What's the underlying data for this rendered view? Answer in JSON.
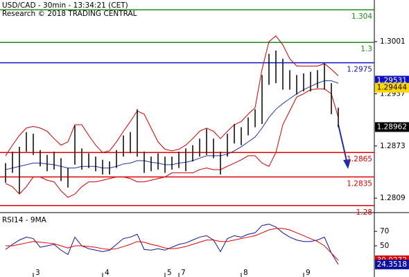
{
  "chart_data": [
    {
      "type": "hilo",
      "title": "USD/CAD - 30min - 13:34:21 (CET)",
      "subtitle": "Research © 2018 TRADING CENTRAL",
      "high": [
        1.2852,
        1.2866,
        1.2872,
        1.289,
        1.2888,
        1.2868,
        1.2862,
        1.2866,
        1.2858,
        1.2846,
        1.2898,
        1.287,
        1.2864,
        1.286,
        1.2856,
        1.2854,
        1.2868,
        1.2886,
        1.289,
        1.2918,
        1.2866,
        1.286,
        1.2864,
        1.286,
        1.286,
        1.2866,
        1.287,
        1.2874,
        1.2882,
        1.2894,
        1.2882,
        1.2866,
        1.2888,
        1.29,
        1.2896,
        1.2908,
        1.2918,
        1.296,
        1.2986,
        1.299,
        1.298,
        1.2966,
        1.296,
        1.2962,
        1.2964,
        1.2966,
        1.2974,
        1.295,
        1.292
      ],
      "low": [
        1.2828,
        1.284,
        1.2815,
        1.2866,
        1.2862,
        1.2848,
        1.2842,
        1.2844,
        1.283,
        1.2822,
        1.285,
        1.2844,
        1.2846,
        1.2842,
        1.2838,
        1.2838,
        1.2846,
        1.286,
        1.2864,
        1.286,
        1.284,
        1.2842,
        1.2844,
        1.284,
        1.2844,
        1.2846,
        1.2842,
        1.2854,
        1.286,
        1.2862,
        1.2858,
        1.2838,
        1.286,
        1.2876,
        1.2874,
        1.2886,
        1.2896,
        1.29,
        1.2948,
        1.295,
        1.2942,
        1.2942,
        1.2936,
        1.294,
        1.294,
        1.2944,
        1.2942,
        1.2912,
        1.2896
      ],
      "color": "#000000",
      "overlays": [
        {
          "color": "#cc0000",
          "values": [
            1.2861,
            1.2874,
            1.2886,
            1.2895,
            1.2897,
            1.2895,
            1.2891,
            1.2882,
            1.2874,
            1.2878,
            1.2899,
            1.2899,
            1.2886,
            1.2874,
            1.2865,
            1.2867,
            1.2878,
            1.2891,
            1.2903,
            1.2916,
            1.2912,
            1.2895,
            1.2878,
            1.2869,
            1.2867,
            1.2869,
            1.2874,
            1.2882,
            1.2891,
            1.2895,
            1.2891,
            1.2882,
            1.2891,
            1.2899,
            1.2903,
            1.2912,
            1.292,
            1.2967,
            1.3001,
            1.3008,
            1.2997,
            1.298,
            1.2971,
            1.2971,
            1.2971,
            1.2971,
            1.2974,
            1.2967,
            1.2959
          ]
        },
        {
          "color": "#cc0000",
          "values": [
            1.2827,
            1.2823,
            1.2814,
            1.2823,
            1.2835,
            1.2835,
            1.2831,
            1.2829,
            1.2818,
            1.281,
            1.2814,
            1.2823,
            1.2829,
            1.2829,
            1.2831,
            1.2833,
            1.2835,
            1.2835,
            1.2833,
            1.2829,
            1.2829,
            1.2831,
            1.2833,
            1.2835,
            1.284,
            1.284,
            1.284,
            1.284,
            1.2844,
            1.2846,
            1.2844,
            1.2844,
            1.2848,
            1.2852,
            1.2856,
            1.2861,
            1.2861,
            1.2852,
            1.2848,
            1.2865,
            1.2899,
            1.2916,
            1.2933,
            1.2937,
            1.2942,
            1.2943,
            1.2943,
            1.2937,
            1.2908
          ]
        },
        {
          "color": "#2233aa",
          "values": [
            1.2844,
            1.2846,
            1.2848,
            1.285,
            1.2852,
            1.2852,
            1.2851,
            1.285,
            1.2848,
            1.2846,
            1.2846,
            1.2848,
            1.2848,
            1.2848,
            1.2846,
            1.2846,
            1.2848,
            1.2851,
            1.2852,
            1.2855,
            1.2855,
            1.2853,
            1.2852,
            1.285,
            1.285,
            1.2852,
            1.2853,
            1.2855,
            1.2858,
            1.2861,
            1.2861,
            1.2861,
            1.2863,
            1.2867,
            1.2872,
            1.2878,
            1.2884,
            1.2895,
            1.2908,
            1.2918,
            1.2925,
            1.2931,
            1.2937,
            1.2942,
            1.2946,
            1.295,
            1.2953,
            1.2953,
            1.295
          ]
        }
      ],
      "levels": [
        {
          "value": 1.304,
          "color": "#1a8c1a"
        },
        {
          "value": 1.3,
          "color": "#1a8c1a"
        },
        {
          "value": 1.2975,
          "color": "#1010c0"
        },
        {
          "value": 1.2865,
          "color": "#e00000"
        },
        {
          "value": 1.2835,
          "color": "#e00000"
        },
        {
          "value": 1.28,
          "color": "#e00000"
        }
      ],
      "markers": [
        {
          "value": 1.29531,
          "color": "#1010c0"
        },
        {
          "value": 1.29444,
          "color": "#ffd700"
        },
        {
          "value": 1.28962,
          "color": "#000000"
        }
      ],
      "ylim": [
        1.2793,
        1.3052
      ],
      "yticks": [
        1.3001,
        1.2937,
        1.2873,
        1.2809
      ]
    },
    {
      "type": "line",
      "title": "RSI14 - 9MA",
      "categories": [
        null,
        null,
        null,
        null,
        "3",
        null,
        null,
        null,
        null,
        null,
        null,
        null,
        null,
        null,
        "4",
        null,
        null,
        null,
        null,
        null,
        null,
        null,
        null,
        "5",
        null,
        "7",
        null,
        null,
        null,
        null,
        null,
        null,
        null,
        null,
        "8",
        null,
        null,
        null,
        null,
        null,
        null,
        null,
        null,
        "9",
        null,
        null,
        null,
        null,
        null
      ],
      "series": [
        {
          "color": "#1010a0",
          "values": [
            45,
            52,
            58,
            62,
            60,
            48,
            50,
            52,
            44,
            38,
            62,
            50,
            46,
            44,
            42,
            44,
            52,
            60,
            62,
            66,
            45,
            44,
            46,
            44,
            48,
            52,
            54,
            58,
            62,
            64,
            58,
            42,
            60,
            64,
            62,
            66,
            68,
            78,
            80,
            76,
            68,
            62,
            58,
            56,
            56,
            58,
            62,
            40,
            24.3518
          ]
        },
        {
          "color": "#e00000",
          "values": [
            50,
            50,
            52,
            54,
            56,
            55,
            54,
            53,
            50,
            47,
            50,
            50,
            49,
            48,
            46,
            45,
            46,
            49,
            52,
            56,
            55,
            52,
            50,
            47,
            46,
            47,
            49,
            52,
            55,
            58,
            58,
            56,
            56,
            58,
            60,
            62,
            64,
            68,
            72,
            74,
            74,
            72,
            68,
            64,
            60,
            56,
            50,
            40,
            30.0272
          ]
        }
      ],
      "ylim": [
        7,
        93
      ],
      "yticks": [
        50,
        70
      ]
    }
  ]
}
